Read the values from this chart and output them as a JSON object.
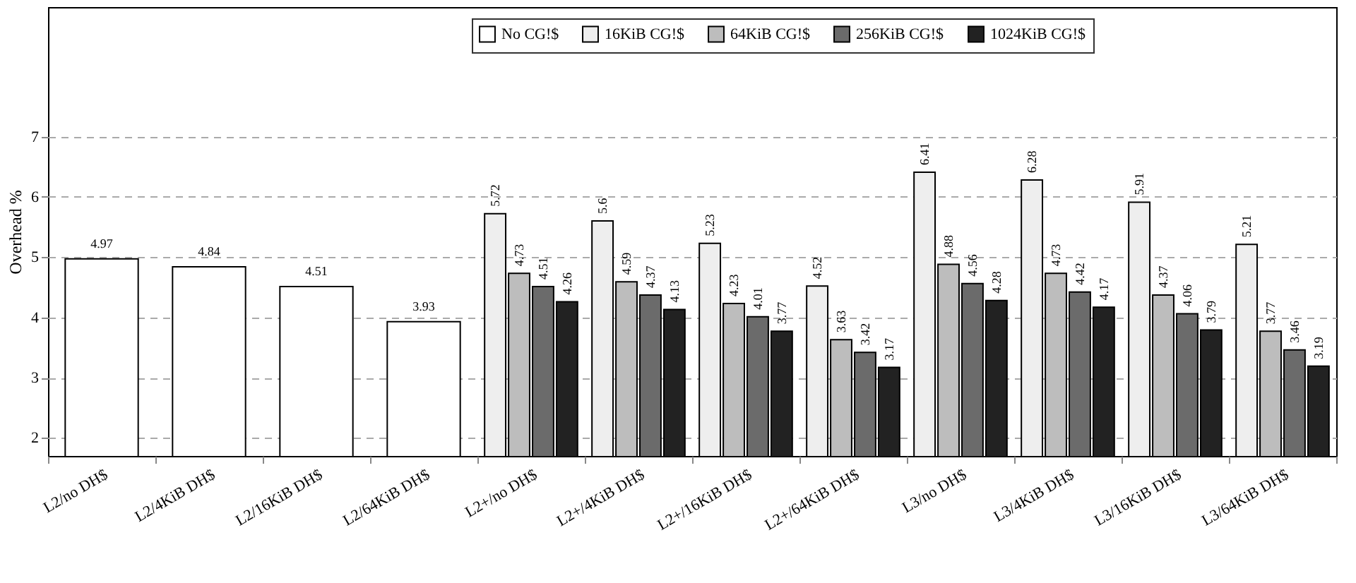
{
  "chart_data": {
    "type": "bar",
    "ylabel": "Overhead %",
    "categories": [
      "L2/no DH$",
      "L2/4KiB DH$",
      "L2/16KiB DH$",
      "L2/64KiB DH$",
      "L2+/no DH$",
      "L2+/4KiB DH$",
      "L2+/16KiB DH$",
      "L2+/64KiB DH$",
      "L3/no DH$",
      "L3/4KiB DH$",
      "L3/16KiB DH$",
      "L3/64KiB DH$"
    ],
    "series": [
      {
        "name": "No CG!$",
        "color": "#ffffff",
        "values": [
          4.97,
          4.84,
          4.51,
          3.93,
          null,
          null,
          null,
          null,
          null,
          null,
          null,
          null
        ]
      },
      {
        "name": "16KiB CG!$",
        "color": "#eeeeee",
        "values": [
          null,
          null,
          null,
          null,
          5.72,
          5.6,
          5.23,
          4.52,
          6.41,
          6.28,
          5.91,
          5.21
        ]
      },
      {
        "name": "64KiB CG!$",
        "color": "#bdbdbd",
        "values": [
          null,
          null,
          null,
          null,
          4.73,
          4.59,
          4.23,
          3.63,
          4.88,
          4.73,
          4.37,
          3.77
        ]
      },
      {
        "name": "256KiB CG!$",
        "color": "#6b6b6b",
        "values": [
          null,
          null,
          null,
          null,
          4.51,
          4.37,
          4.01,
          3.42,
          4.56,
          4.42,
          4.06,
          3.46
        ]
      },
      {
        "name": "1024KiB CG!$",
        "color": "#222222",
        "values": [
          null,
          null,
          null,
          null,
          4.26,
          4.13,
          3.77,
          3.17,
          4.28,
          4.17,
          3.79,
          3.19
        ]
      }
    ],
    "ylim": [
      1.7,
      9.15
    ],
    "yticks": [
      2,
      3,
      4,
      5,
      6,
      7
    ],
    "grid": "y",
    "legend": "top",
    "data_labels": true
  }
}
